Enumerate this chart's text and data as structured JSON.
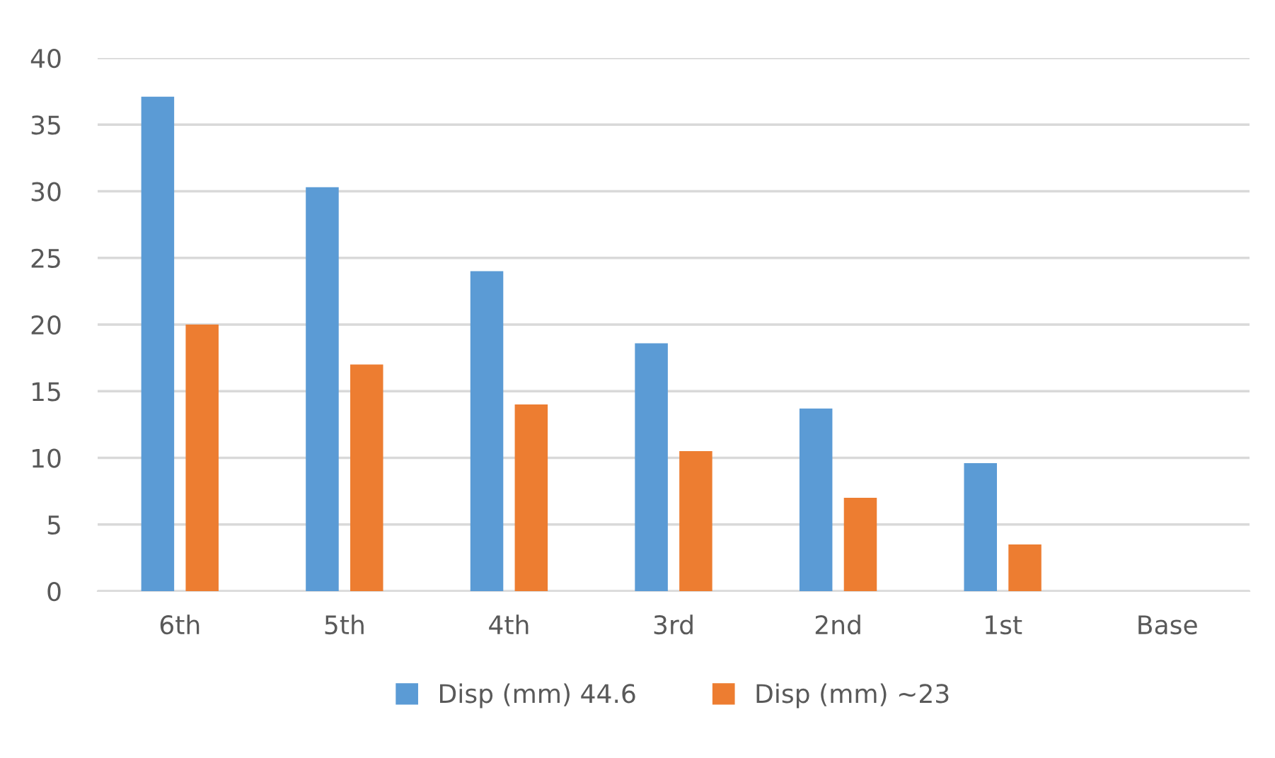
{
  "chart_data": {
    "type": "bar",
    "categories": [
      "6th",
      "5th",
      "4th",
      "3rd",
      "2nd",
      "1st",
      "Base"
    ],
    "series": [
      {
        "name": "Disp (mm) 44.6",
        "color": "#5b9bd5",
        "values": [
          37.1,
          30.3,
          24.0,
          18.6,
          13.7,
          9.6,
          0
        ]
      },
      {
        "name": "Disp (mm) ~23",
        "color": "#ed7d31",
        "values": [
          20.0,
          17.0,
          14.0,
          10.5,
          7.0,
          3.5,
          0
        ]
      }
    ],
    "ylim": [
      0,
      40
    ],
    "yticks": [
      0,
      5,
      10,
      15,
      20,
      25,
      30,
      35,
      40
    ],
    "grid": "y",
    "legend": "bottom"
  }
}
